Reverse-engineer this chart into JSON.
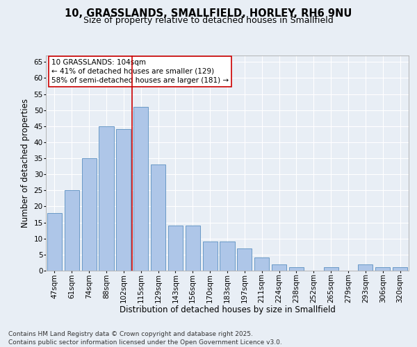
{
  "title_line1": "10, GRASSLANDS, SMALLFIELD, HORLEY, RH6 9NU",
  "title_line2": "Size of property relative to detached houses in Smallfield",
  "xlabel": "Distribution of detached houses by size in Smallfield",
  "ylabel": "Number of detached properties",
  "categories": [
    "47sqm",
    "61sqm",
    "74sqm",
    "88sqm",
    "102sqm",
    "115sqm",
    "129sqm",
    "143sqm",
    "156sqm",
    "170sqm",
    "183sqm",
    "197sqm",
    "211sqm",
    "224sqm",
    "238sqm",
    "252sqm",
    "265sqm",
    "279sqm",
    "293sqm",
    "306sqm",
    "320sqm"
  ],
  "values": [
    18,
    25,
    35,
    45,
    44,
    51,
    33,
    14,
    14,
    9,
    9,
    7,
    4,
    2,
    1,
    0,
    1,
    0,
    2,
    1,
    1
  ],
  "bar_color": "#aec6e8",
  "bar_edge_color": "#5a8fc0",
  "vline_x_index": 4,
  "vline_color": "#cc0000",
  "annotation_text": "10 GRASSLANDS: 104sqm\n← 41% of detached houses are smaller (129)\n58% of semi-detached houses are larger (181) →",
  "annotation_box_color": "#ffffff",
  "annotation_box_edge_color": "#cc0000",
  "ylim": [
    0,
    67
  ],
  "yticks": [
    0,
    5,
    10,
    15,
    20,
    25,
    30,
    35,
    40,
    45,
    50,
    55,
    60,
    65
  ],
  "background_color": "#e8eef5",
  "grid_color": "#ffffff",
  "footer_line1": "Contains HM Land Registry data © Crown copyright and database right 2025.",
  "footer_line2": "Contains public sector information licensed under the Open Government Licence v3.0.",
  "title_fontsize": 10.5,
  "title2_fontsize": 9,
  "axis_label_fontsize": 8.5,
  "tick_fontsize": 7.5,
  "annotation_fontsize": 7.5,
  "footer_fontsize": 6.5
}
